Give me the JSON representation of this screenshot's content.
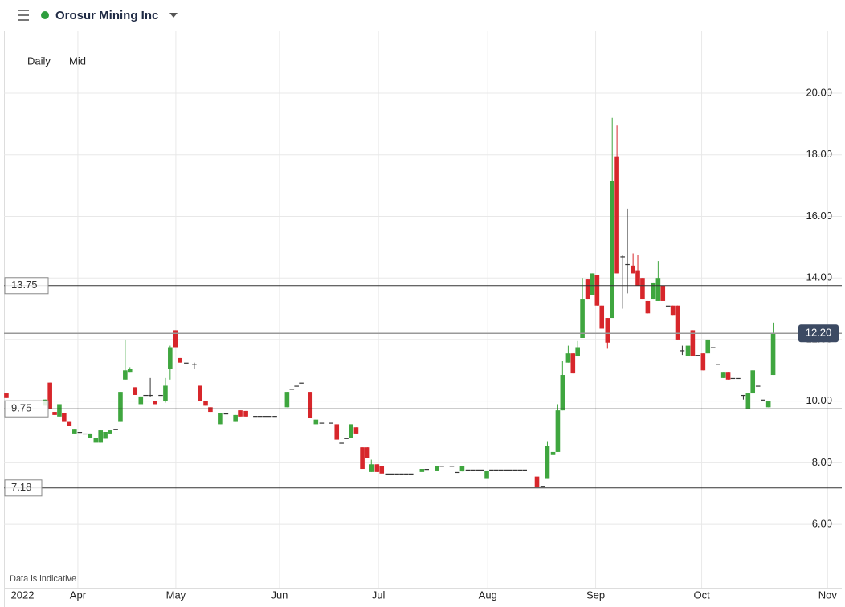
{
  "header": {
    "title": "Orosur Mining Inc",
    "interval": "Daily",
    "price_type": "Mid"
  },
  "footnote": "Data is indicative",
  "chart_data": {
    "type": "candlestick",
    "up_color": "#3fa63f",
    "down_color": "#d7262b",
    "flat_color": "#333333",
    "xlim": [
      0,
      177
    ],
    "ylim": [
      4,
      22
    ],
    "xticks": [
      {
        "value": 3.9,
        "label": "2022"
      },
      {
        "value": 15.6,
        "label": "Apr"
      },
      {
        "value": 36.3,
        "label": "May"
      },
      {
        "value": 58.2,
        "label": "Jun"
      },
      {
        "value": 79.1,
        "label": "Jul"
      },
      {
        "value": 102.2,
        "label": "Aug"
      },
      {
        "value": 125,
        "label": "Sep"
      },
      {
        "value": 147.4,
        "label": "Oct"
      },
      {
        "value": 174,
        "label": "Nov"
      }
    ],
    "yticks": [
      {
        "value": 6,
        "label": "6.00"
      },
      {
        "value": 8,
        "label": "8.00"
      },
      {
        "value": 10,
        "label": "10.00"
      },
      {
        "value": 12,
        "label": "12.00"
      },
      {
        "value": 14,
        "label": "14.00"
      },
      {
        "value": 16,
        "label": "16.00"
      },
      {
        "value": 18,
        "label": "18.00"
      },
      {
        "value": 20,
        "label": "20.00"
      }
    ],
    "grid": true,
    "levels": [
      13.75,
      9.75,
      7.18
    ],
    "last_price": {
      "value": 12.2,
      "label": "12.20"
    },
    "candles": [
      {
        "x": 0.5,
        "o": 10.25,
        "h": 10.25,
        "l": 10.1,
        "c": 10.1
      },
      {
        "x": 8.7,
        "o": 9.85,
        "h": 10.05,
        "l": 9.85,
        "c": 10.05
      },
      {
        "x": 9.7,
        "o": 10.6,
        "h": 10.6,
        "l": 9.75,
        "c": 9.75
      },
      {
        "x": 10.7,
        "o": 9.65,
        "h": 9.65,
        "l": 9.55,
        "c": 9.55
      },
      {
        "x": 11.7,
        "o": 9.5,
        "h": 9.9,
        "l": 9.5,
        "c": 9.9
      },
      {
        "x": 12.7,
        "o": 9.6,
        "h": 9.6,
        "l": 9.35,
        "c": 9.35
      },
      {
        "x": 13.8,
        "o": 9.35,
        "h": 9.35,
        "l": 9.2,
        "c": 9.2
      },
      {
        "x": 14.9,
        "o": 8.95,
        "h": 9.1,
        "l": 8.95,
        "c": 9.1
      },
      {
        "x": 16,
        "o": 9,
        "h": 9,
        "l": 9,
        "c": 9
      },
      {
        "x": 17.1,
        "o": 8.95,
        "h": 8.95,
        "l": 8.95,
        "c": 8.95
      },
      {
        "x": 18.2,
        "o": 8.8,
        "h": 8.95,
        "l": 8.8,
        "c": 8.95
      },
      {
        "x": 19.4,
        "o": 8.65,
        "h": 8.8,
        "l": 8.65,
        "c": 8.8
      },
      {
        "x": 20.4,
        "o": 8.65,
        "h": 9.05,
        "l": 8.65,
        "c": 9.05
      },
      {
        "x": 21.4,
        "o": 8.78,
        "h": 9,
        "l": 8.78,
        "c": 9
      },
      {
        "x": 22.4,
        "o": 8.95,
        "h": 9.05,
        "l": 8.95,
        "c": 9.05
      },
      {
        "x": 23.6,
        "o": 9.1,
        "h": 9.1,
        "l": 9.1,
        "c": 9.1
      },
      {
        "x": 24.6,
        "o": 9.35,
        "h": 10.3,
        "l": 9.35,
        "c": 10.3
      },
      {
        "x": 25.6,
        "o": 10.7,
        "h": 12,
        "l": 10.7,
        "c": 11
      },
      {
        "x": 26.6,
        "o": 10.95,
        "h": 11.1,
        "l": 10.95,
        "c": 11.05
      },
      {
        "x": 27.7,
        "o": 10.45,
        "h": 10.45,
        "l": 10.2,
        "c": 10.2
      },
      {
        "x": 28.9,
        "o": 9.9,
        "h": 10.15,
        "l": 9.9,
        "c": 10.15
      },
      {
        "x": 29.9,
        "o": 10.2,
        "h": 10.2,
        "l": 10.2,
        "c": 10.2
      },
      {
        "x": 30.9,
        "o": 10.2,
        "h": 10.75,
        "l": 10.15,
        "c": 10.2
      },
      {
        "x": 31.9,
        "o": 10,
        "h": 10,
        "l": 9.9,
        "c": 9.9
      },
      {
        "x": 33.1,
        "o": 10.2,
        "h": 10.2,
        "l": 10.2,
        "c": 10.2
      },
      {
        "x": 34.1,
        "o": 10,
        "h": 10.75,
        "l": 9.95,
        "c": 10.5
      },
      {
        "x": 35.1,
        "o": 11.05,
        "h": 11.8,
        "l": 10.7,
        "c": 11.75
      },
      {
        "x": 36.2,
        "o": 12.3,
        "h": 12.3,
        "l": 11.75,
        "c": 11.75
      },
      {
        "x": 37.2,
        "o": 11.4,
        "h": 11.4,
        "l": 11.25,
        "c": 11.25
      },
      {
        "x": 38.5,
        "o": 11.25,
        "h": 11.25,
        "l": 11.25,
        "c": 11.25
      },
      {
        "x": 40.2,
        "o": 11.2,
        "h": 11.25,
        "l": 11.05,
        "c": 11.2
      },
      {
        "x": 41.4,
        "o": 10.5,
        "h": 10.5,
        "l": 10,
        "c": 10
      },
      {
        "x": 42.6,
        "o": 10,
        "h": 10,
        "l": 9.85,
        "c": 9.85
      },
      {
        "x": 43.6,
        "o": 9.8,
        "h": 9.8,
        "l": 9.65,
        "c": 9.65
      },
      {
        "x": 45.8,
        "o": 9.25,
        "h": 9.6,
        "l": 9.25,
        "c": 9.6
      },
      {
        "x": 46.9,
        "o": 9.6,
        "h": 9.6,
        "l": 9.6,
        "c": 9.6
      },
      {
        "x": 48.9,
        "o": 9.35,
        "h": 9.55,
        "l": 9.35,
        "c": 9.55
      },
      {
        "x": 49.9,
        "o": 9.7,
        "h": 9.7,
        "l": 9.5,
        "c": 9.5
      },
      {
        "x": 51.1,
        "o": 9.68,
        "h": 9.68,
        "l": 9.5,
        "c": 9.5
      },
      {
        "x": 53.1,
        "o": 9.52,
        "h": 9.52,
        "l": 9.52,
        "c": 9.52
      },
      {
        "x": 54.1,
        "o": 9.52,
        "h": 9.52,
        "l": 9.52,
        "c": 9.52
      },
      {
        "x": 55.1,
        "o": 9.52,
        "h": 9.52,
        "l": 9.52,
        "c": 9.52
      },
      {
        "x": 56.1,
        "o": 9.52,
        "h": 9.52,
        "l": 9.52,
        "c": 9.52
      },
      {
        "x": 57.2,
        "o": 9.52,
        "h": 9.52,
        "l": 9.52,
        "c": 9.52
      },
      {
        "x": 59.8,
        "o": 9.8,
        "h": 10.3,
        "l": 9.8,
        "c": 10.3
      },
      {
        "x": 60.8,
        "o": 10.4,
        "h": 10.4,
        "l": 10.4,
        "c": 10.4
      },
      {
        "x": 61.8,
        "o": 10.5,
        "h": 10.5,
        "l": 10.5,
        "c": 10.5
      },
      {
        "x": 62.8,
        "o": 10.6,
        "h": 10.6,
        "l": 10.6,
        "c": 10.6
      },
      {
        "x": 64.7,
        "o": 10.3,
        "h": 10.3,
        "l": 9.45,
        "c": 9.45
      },
      {
        "x": 65.9,
        "o": 9.25,
        "h": 9.4,
        "l": 9.25,
        "c": 9.4
      },
      {
        "x": 67.1,
        "o": 9.3,
        "h": 9.3,
        "l": 9.3,
        "c": 9.3
      },
      {
        "x": 69.1,
        "o": 9.3,
        "h": 9.3,
        "l": 9.3,
        "c": 9.3
      },
      {
        "x": 70.3,
        "o": 9.25,
        "h": 9.25,
        "l": 8.75,
        "c": 8.75
      },
      {
        "x": 71.3,
        "o": 8.65,
        "h": 8.65,
        "l": 8.65,
        "c": 8.65
      },
      {
        "x": 72.3,
        "o": 8.8,
        "h": 8.8,
        "l": 8.8,
        "c": 8.8
      },
      {
        "x": 73.3,
        "o": 8.8,
        "h": 9.25,
        "l": 8.8,
        "c": 9.25
      },
      {
        "x": 74.4,
        "o": 9.15,
        "h": 9.15,
        "l": 8.95,
        "c": 8.95
      },
      {
        "x": 75.7,
        "o": 8.5,
        "h": 8.5,
        "l": 7.8,
        "c": 7.8
      },
      {
        "x": 76.8,
        "o": 8.5,
        "h": 8.5,
        "l": 8.15,
        "c": 8.15
      },
      {
        "x": 77.6,
        "o": 7.7,
        "h": 8.1,
        "l": 7.7,
        "c": 7.95
      },
      {
        "x": 78.8,
        "o": 7.95,
        "h": 7.95,
        "l": 7.7,
        "c": 7.7
      },
      {
        "x": 79.8,
        "o": 7.9,
        "h": 7.9,
        "l": 7.65,
        "c": 7.65
      },
      {
        "x": 81,
        "o": 7.65,
        "h": 7.65,
        "l": 7.65,
        "c": 7.65
      },
      {
        "x": 82,
        "o": 7.65,
        "h": 7.65,
        "l": 7.65,
        "c": 7.65
      },
      {
        "x": 83,
        "o": 7.65,
        "h": 7.65,
        "l": 7.65,
        "c": 7.65
      },
      {
        "x": 84,
        "o": 7.65,
        "h": 7.65,
        "l": 7.65,
        "c": 7.65
      },
      {
        "x": 85,
        "o": 7.65,
        "h": 7.65,
        "l": 7.65,
        "c": 7.65
      },
      {
        "x": 86,
        "o": 7.65,
        "h": 7.65,
        "l": 7.65,
        "c": 7.65
      },
      {
        "x": 88.3,
        "o": 7.7,
        "h": 7.8,
        "l": 7.7,
        "c": 7.8
      },
      {
        "x": 89.3,
        "o": 7.8,
        "h": 7.8,
        "l": 7.8,
        "c": 7.8
      },
      {
        "x": 91.5,
        "o": 7.75,
        "h": 7.9,
        "l": 7.75,
        "c": 7.9
      },
      {
        "x": 92.5,
        "o": 7.9,
        "h": 7.9,
        "l": 7.9,
        "c": 7.9
      },
      {
        "x": 94.6,
        "o": 7.9,
        "h": 7.9,
        "l": 7.9,
        "c": 7.9
      },
      {
        "x": 95.8,
        "o": 7.7,
        "h": 7.7,
        "l": 7.7,
        "c": 7.7
      },
      {
        "x": 96.8,
        "o": 7.72,
        "h": 7.9,
        "l": 7.72,
        "c": 7.9
      },
      {
        "x": 98,
        "o": 7.78,
        "h": 7.78,
        "l": 7.78,
        "c": 7.78
      },
      {
        "x": 99,
        "o": 7.78,
        "h": 7.78,
        "l": 7.78,
        "c": 7.78
      },
      {
        "x": 100,
        "o": 7.78,
        "h": 7.78,
        "l": 7.78,
        "c": 7.78
      },
      {
        "x": 101,
        "o": 7.78,
        "h": 7.78,
        "l": 7.78,
        "c": 7.78
      },
      {
        "x": 102,
        "o": 7.5,
        "h": 7.75,
        "l": 7.5,
        "c": 7.75
      },
      {
        "x": 103,
        "o": 7.78,
        "h": 7.78,
        "l": 7.78,
        "c": 7.78
      },
      {
        "x": 104,
        "o": 7.78,
        "h": 7.78,
        "l": 7.78,
        "c": 7.78
      },
      {
        "x": 105,
        "o": 7.78,
        "h": 7.78,
        "l": 7.78,
        "c": 7.78
      },
      {
        "x": 106,
        "o": 7.78,
        "h": 7.78,
        "l": 7.78,
        "c": 7.78
      },
      {
        "x": 107,
        "o": 7.78,
        "h": 7.78,
        "l": 7.78,
        "c": 7.78
      },
      {
        "x": 108,
        "o": 7.78,
        "h": 7.78,
        "l": 7.78,
        "c": 7.78
      },
      {
        "x": 109,
        "o": 7.78,
        "h": 7.78,
        "l": 7.78,
        "c": 7.78
      },
      {
        "x": 110,
        "o": 7.78,
        "h": 7.78,
        "l": 7.78,
        "c": 7.78
      },
      {
        "x": 112.6,
        "o": 7.55,
        "h": 7.55,
        "l": 7.1,
        "c": 7.2
      },
      {
        "x": 113.8,
        "o": 7.25,
        "h": 7.25,
        "l": 7.25,
        "c": 7.25
      },
      {
        "x": 114.8,
        "o": 7.5,
        "h": 8.7,
        "l": 7.5,
        "c": 8.55
      },
      {
        "x": 116,
        "o": 8.25,
        "h": 8.35,
        "l": 8.25,
        "c": 8.35
      },
      {
        "x": 117,
        "o": 8.35,
        "h": 9.9,
        "l": 8.35,
        "c": 9.7
      },
      {
        "x": 118,
        "o": 9.7,
        "h": 11.3,
        "l": 9.7,
        "c": 10.85
      },
      {
        "x": 119.2,
        "o": 11.25,
        "h": 11.8,
        "l": 11.25,
        "c": 11.55
      },
      {
        "x": 120.2,
        "o": 11.55,
        "h": 11.55,
        "l": 10.9,
        "c": 10.9
      },
      {
        "x": 121.2,
        "o": 11.45,
        "h": 11.95,
        "l": 11.45,
        "c": 11.75
      },
      {
        "x": 122.2,
        "o": 12.05,
        "h": 14,
        "l": 12.05,
        "c": 13.3
      },
      {
        "x": 123.3,
        "o": 13.95,
        "h": 13.95,
        "l": 13.3,
        "c": 13.3
      },
      {
        "x": 124.3,
        "o": 13.45,
        "h": 14.15,
        "l": 13.45,
        "c": 14.15
      },
      {
        "x": 125.3,
        "o": 14.1,
        "h": 14.1,
        "l": 13.1,
        "c": 13.1
      },
      {
        "x": 126.3,
        "o": 13.1,
        "h": 13.1,
        "l": 12.35,
        "c": 12.35
      },
      {
        "x": 127.5,
        "o": 12.7,
        "h": 12.7,
        "l": 11.7,
        "c": 11.9
      },
      {
        "x": 128.5,
        "o": 12.7,
        "h": 19.2,
        "l": 12.7,
        "c": 17.15
      },
      {
        "x": 129.5,
        "o": 17.95,
        "h": 18.95,
        "l": 14.15,
        "c": 14.15
      },
      {
        "x": 130.7,
        "o": 14.7,
        "h": 14.75,
        "l": 13,
        "c": 14.7
      },
      {
        "x": 131.7,
        "o": 14.45,
        "h": 16.25,
        "l": 13.5,
        "c": 14.45
      },
      {
        "x": 132.9,
        "o": 14.4,
        "h": 14.8,
        "l": 14.15,
        "c": 14.15
      },
      {
        "x": 133.9,
        "o": 14.25,
        "h": 14.75,
        "l": 13.75,
        "c": 13.75
      },
      {
        "x": 134.9,
        "o": 14,
        "h": 14,
        "l": 13.3,
        "c": 13.3
      },
      {
        "x": 136,
        "o": 13.25,
        "h": 13.25,
        "l": 12.85,
        "c": 12.85
      },
      {
        "x": 137.2,
        "o": 13.3,
        "h": 13.85,
        "l": 13.3,
        "c": 13.85
      },
      {
        "x": 138.2,
        "o": 13.25,
        "h": 14.55,
        "l": 13.25,
        "c": 14
      },
      {
        "x": 139.2,
        "o": 13.75,
        "h": 13.75,
        "l": 13.25,
        "c": 13.25
      },
      {
        "x": 140.3,
        "o": 13.1,
        "h": 13.1,
        "l": 13.1,
        "c": 13.1
      },
      {
        "x": 141.3,
        "o": 13.1,
        "h": 13.1,
        "l": 12.8,
        "c": 12.8
      },
      {
        "x": 142.3,
        "o": 13.1,
        "h": 13.1,
        "l": 12,
        "c": 12
      },
      {
        "x": 143.3,
        "o": 11.65,
        "h": 11.8,
        "l": 11.5,
        "c": 11.65
      },
      {
        "x": 144.5,
        "o": 11.45,
        "h": 11.8,
        "l": 11.45,
        "c": 11.8
      },
      {
        "x": 145.5,
        "o": 12.3,
        "h": 12.3,
        "l": 11.45,
        "c": 11.45
      },
      {
        "x": 146.5,
        "o": 11.5,
        "h": 11.5,
        "l": 11.5,
        "c": 11.5
      },
      {
        "x": 147.7,
        "o": 11.55,
        "h": 11.55,
        "l": 11,
        "c": 11
      },
      {
        "x": 148.7,
        "o": 11.55,
        "h": 12,
        "l": 11.55,
        "c": 12
      },
      {
        "x": 149.8,
        "o": 11.75,
        "h": 11.75,
        "l": 11.75,
        "c": 11.75
      },
      {
        "x": 150.9,
        "o": 11.2,
        "h": 11.2,
        "l": 11.2,
        "c": 11.2
      },
      {
        "x": 152,
        "o": 10.75,
        "h": 10.95,
        "l": 10.75,
        "c": 10.95
      },
      {
        "x": 153,
        "o": 10.95,
        "h": 10.95,
        "l": 10.7,
        "c": 10.7
      },
      {
        "x": 154,
        "o": 10.75,
        "h": 10.75,
        "l": 10.75,
        "c": 10.75
      },
      {
        "x": 155.1,
        "o": 10.75,
        "h": 10.75,
        "l": 10.75,
        "c": 10.75
      },
      {
        "x": 156.2,
        "o": 10.2,
        "h": 10.2,
        "l": 10.05,
        "c": 10.2
      },
      {
        "x": 157.2,
        "o": 9.75,
        "h": 10.25,
        "l": 9.75,
        "c": 10.25
      },
      {
        "x": 158.2,
        "o": 10.25,
        "h": 11,
        "l": 10.25,
        "c": 11
      },
      {
        "x": 159.3,
        "o": 10.5,
        "h": 10.5,
        "l": 10.5,
        "c": 10.5
      },
      {
        "x": 160.4,
        "o": 10.05,
        "h": 10.05,
        "l": 10.05,
        "c": 10.05
      },
      {
        "x": 161.5,
        "o": 9.8,
        "h": 10,
        "l": 9.8,
        "c": 10
      },
      {
        "x": 162.5,
        "o": 10.85,
        "h": 12.55,
        "l": 10.85,
        "c": 12.2
      }
    ]
  }
}
